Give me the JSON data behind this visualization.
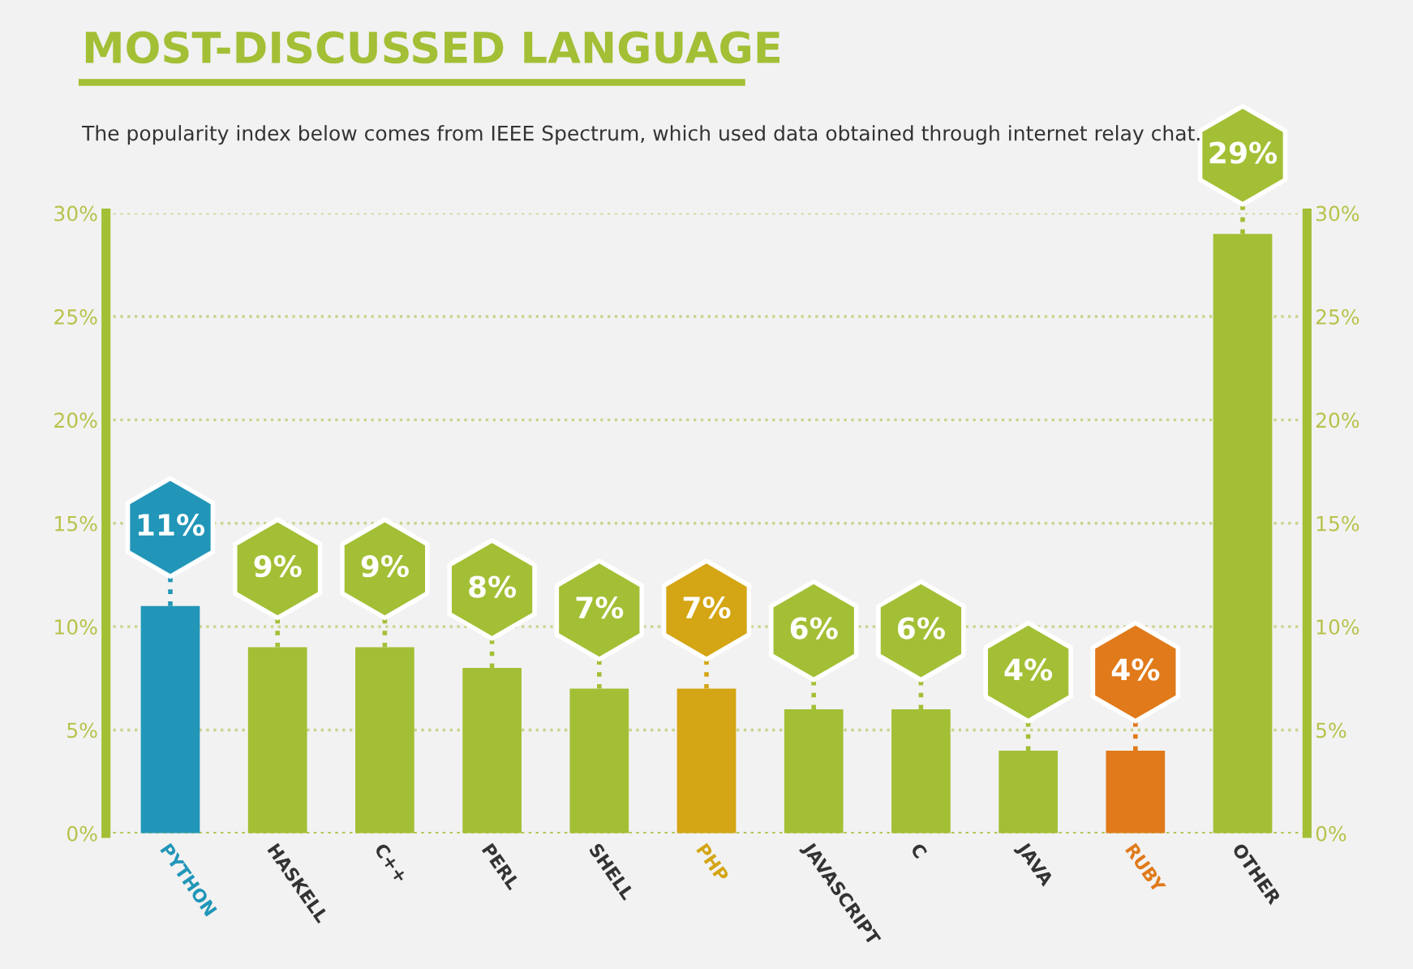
{
  "chart_data": {
    "type": "bar",
    "title": "MOST-DISCUSSED LANGUAGE",
    "subtitle": "The popularity index below comes from IEEE Spectrum, which used data obtained through internet relay chat.",
    "categories": [
      "PYTHON",
      "HASKELL",
      "C++",
      "PERL",
      "SHELL",
      "PHP",
      "JAVASCRIPT",
      "C",
      "JAVA",
      "RUBY",
      "OTHER"
    ],
    "values": [
      11,
      9,
      9,
      8,
      7,
      7,
      6,
      6,
      4,
      4,
      29
    ],
    "colors": [
      "#2196b8",
      "#a3bf35",
      "#a3bf35",
      "#a3bf35",
      "#a3bf35",
      "#d4a514",
      "#a3bf35",
      "#a3bf35",
      "#a3bf35",
      "#e07a1a",
      "#a3bf35"
    ],
    "value_labels": [
      "11%",
      "9%",
      "9%",
      "8%",
      "7%",
      "7%",
      "6%",
      "6%",
      "4%",
      "4%",
      "29%"
    ],
    "ylim": [
      0,
      30
    ],
    "yticks": [
      {
        "value": 0,
        "label": "0%"
      },
      {
        "value": 5,
        "label": "5%"
      },
      {
        "value": 10,
        "label": "10%"
      },
      {
        "value": 15,
        "label": "15%"
      },
      {
        "value": 20,
        "label": "20%"
      },
      {
        "value": 25,
        "label": "25%"
      },
      {
        "value": 30,
        "label": "30%"
      }
    ],
    "y2lim": [
      0,
      30
    ],
    "y2ticks": [
      {
        "value": 0,
        "label": "0%"
      },
      {
        "value": 5,
        "label": "5%"
      },
      {
        "value": 10,
        "label": "10%"
      },
      {
        "value": 15,
        "label": "15%"
      },
      {
        "value": 20,
        "label": "20%"
      },
      {
        "value": 25,
        "label": "25%"
      },
      {
        "value": 30,
        "label": "30%"
      }
    ],
    "grid": "y",
    "legend": false
  }
}
